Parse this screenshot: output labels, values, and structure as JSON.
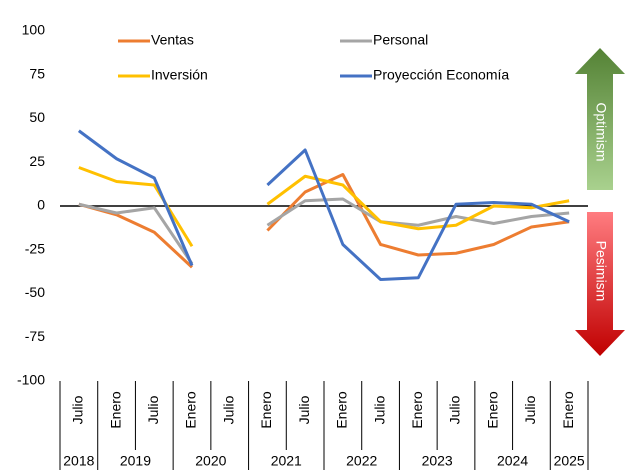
{
  "chart_data": {
    "type": "line",
    "categories": [
      "Julio",
      "Enero",
      "Julio",
      "Enero",
      "Julio",
      "Enero",
      "Julio",
      "Enero",
      "Julio",
      "Enero",
      "Julio",
      "Enero",
      "Julio",
      "Enero"
    ],
    "year_groups": [
      {
        "label": "2018",
        "count": 1
      },
      {
        "label": "2019",
        "count": 2
      },
      {
        "label": "2020",
        "count": 2
      },
      {
        "label": "2021",
        "count": 2
      },
      {
        "label": "2022",
        "count": 2
      },
      {
        "label": "2023",
        "count": 2
      },
      {
        "label": "2024",
        "count": 2
      },
      {
        "label": "2025",
        "count": 1
      }
    ],
    "series": [
      {
        "name": "Ventas",
        "color": "#ED7D31",
        "values": [
          1,
          -5,
          -15,
          -35,
          null,
          -14,
          8,
          18,
          -22,
          -28,
          -27,
          -22,
          -12,
          -9
        ]
      },
      {
        "name": "Personal",
        "color": "#A5A5A5",
        "values": [
          1,
          -4,
          -1,
          -33,
          null,
          -11,
          3,
          4,
          -9,
          -11,
          -6,
          -10,
          -6,
          -4
        ]
      },
      {
        "name": "Inversión",
        "color": "#FFC000",
        "values": [
          22,
          14,
          12,
          -23,
          null,
          1,
          17,
          12,
          -9,
          -13,
          -11,
          0,
          -1,
          3
        ]
      },
      {
        "name": "Proyección Economía",
        "color": "#4472C4",
        "values": [
          43,
          27,
          16,
          -34,
          null,
          12,
          32,
          -22,
          -42,
          -41,
          1,
          2,
          1,
          -9
        ]
      }
    ],
    "ylim": [
      -100,
      100
    ],
    "yticks": [
      100,
      75,
      50,
      25,
      0,
      -25,
      -50,
      -75,
      -100
    ],
    "legend": "top",
    "annotations": [
      "Optimism",
      "Pesimism"
    ]
  }
}
